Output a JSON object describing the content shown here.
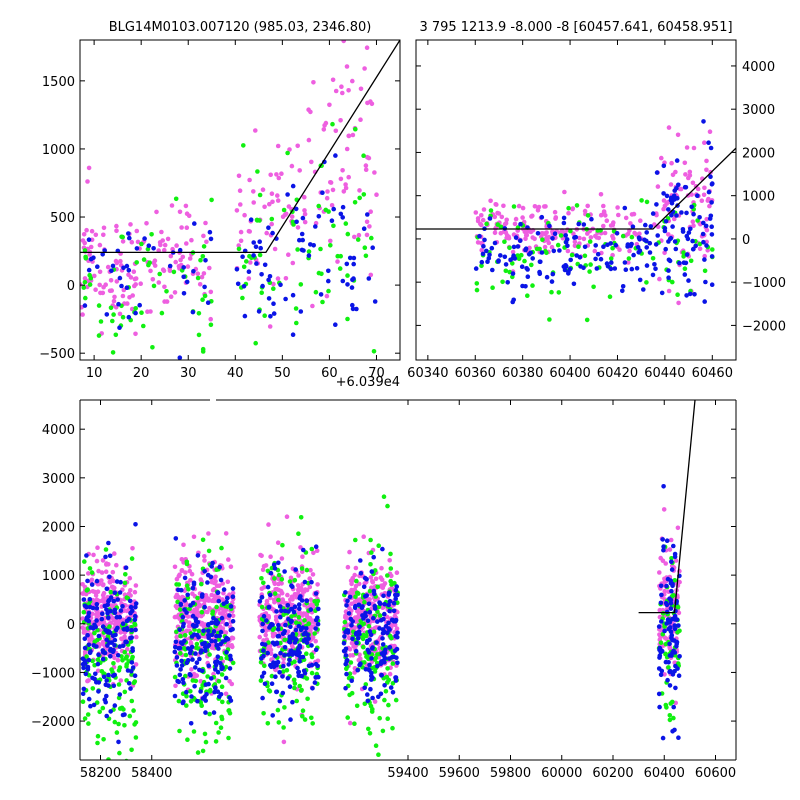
{
  "colors": {
    "magenta": "#ee5fe0",
    "blue": "#0a14e6",
    "green": "#10f010",
    "line": "#000000"
  },
  "chart_data": [
    {
      "id": "top-left",
      "type": "scatter",
      "title": "BLG14M0103.007120 (985.03, 2346.80)",
      "offset_label": "+6.039e4",
      "xlim": [
        7,
        75
      ],
      "ylim": [
        -550,
        1800
      ],
      "xticks": [
        10,
        20,
        30,
        40,
        50,
        60,
        70
      ],
      "yticks": [
        -500,
        0,
        500,
        1000,
        1500
      ],
      "yaxis_side": "left",
      "model_line": {
        "x": [
          7,
          46.5,
          75
        ],
        "y": [
          240,
          240,
          1800
        ]
      },
      "series": [
        {
          "color": "magenta",
          "seed": 11,
          "segments": [
            {
              "x0": 7,
              "x1": 35,
              "mean": 150,
              "sd": 200,
              "n": 150
            },
            {
              "x0": 40,
              "x1": 55,
              "mean": 500,
              "sd": 350,
              "n": 60
            },
            {
              "x0": 55,
              "x1": 70,
              "mean": 1000,
              "sd": 500,
              "n": 70
            }
          ]
        },
        {
          "color": "green",
          "seed": 23,
          "segments": [
            {
              "x0": 7,
              "x1": 35,
              "mean": 60,
              "sd": 250,
              "n": 60
            },
            {
              "x0": 40,
              "x1": 70,
              "mean": 300,
              "sd": 350,
              "n": 70
            }
          ]
        },
        {
          "color": "blue",
          "seed": 37,
          "segments": [
            {
              "x0": 7,
              "x1": 35,
              "mean": 0,
              "sd": 260,
              "n": 45
            },
            {
              "x0": 40,
              "x1": 70,
              "mean": 150,
              "sd": 330,
              "n": 80
            }
          ]
        }
      ]
    },
    {
      "id": "top-right",
      "type": "scatter",
      "title": "3 795 1213.9 -8.000 -8 [60457.641, 60458.951]",
      "xlim": [
        60335,
        60470
      ],
      "ylim": [
        -2800,
        4600
      ],
      "xticks": [
        60340,
        60360,
        60380,
        60400,
        60420,
        60440,
        60460
      ],
      "yticks": [
        -2000,
        -1000,
        0,
        1000,
        2000,
        3000,
        4000
      ],
      "yaxis_side": "right",
      "model_line": {
        "x": [
          60335,
          60435,
          60470
        ],
        "y": [
          230,
          230,
          2100
        ]
      },
      "series": [
        {
          "color": "magenta",
          "seed": 51,
          "segments": [
            {
              "x0": 60360,
              "x1": 60430,
              "mean": 200,
              "sd": 300,
              "n": 200
            },
            {
              "x0": 60435,
              "x1": 60460,
              "mean": 700,
              "sd": 900,
              "n": 90
            }
          ]
        },
        {
          "color": "green",
          "seed": 63,
          "segments": [
            {
              "x0": 60360,
              "x1": 60460,
              "mean": -300,
              "sd": 600,
              "n": 110
            }
          ]
        },
        {
          "color": "blue",
          "seed": 77,
          "segments": [
            {
              "x0": 60360,
              "x1": 60435,
              "mean": -300,
              "sd": 500,
              "n": 130
            },
            {
              "x0": 60435,
              "x1": 60460,
              "mean": 200,
              "sd": 900,
              "n": 90
            }
          ]
        }
      ]
    },
    {
      "id": "bottom",
      "type": "scatter",
      "title": "",
      "xlim": [
        58120,
        60680
      ],
      "ylim": [
        -2800,
        4600
      ],
      "xticks": [
        58200,
        58400,
        59400,
        59600,
        59800,
        60000,
        60200,
        60400,
        60600
      ],
      "yticks": [
        -2000,
        -1000,
        0,
        1000,
        2000,
        3000,
        4000
      ],
      "yaxis_side": "left",
      "model_line": {
        "x": [
          60300,
          60440,
          60520
        ],
        "y": [
          230,
          230,
          4600
        ]
      },
      "series": [
        {
          "color": "magenta",
          "seed": 101,
          "segments": [
            {
              "x0": 58130,
              "x1": 58340,
              "mean": 150,
              "sd": 550,
              "n": 300
            },
            {
              "x0": 58490,
              "x1": 58720,
              "mean": 150,
              "sd": 600,
              "n": 320
            },
            {
              "x0": 58820,
              "x1": 59050,
              "mean": 150,
              "sd": 600,
              "n": 300
            },
            {
              "x0": 59150,
              "x1": 59360,
              "mean": 150,
              "sd": 600,
              "n": 300
            },
            {
              "x0": 60380,
              "x1": 60460,
              "mean": 250,
              "sd": 650,
              "n": 120
            }
          ]
        },
        {
          "color": "green",
          "seed": 131,
          "segments": [
            {
              "x0": 58130,
              "x1": 58340,
              "mean": -600,
              "sd": 900,
              "n": 140
            },
            {
              "x0": 58490,
              "x1": 58720,
              "mean": -700,
              "sd": 950,
              "n": 150
            },
            {
              "x0": 58820,
              "x1": 59050,
              "mean": -400,
              "sd": 900,
              "n": 140
            },
            {
              "x0": 59150,
              "x1": 59360,
              "mean": -500,
              "sd": 950,
              "n": 140
            },
            {
              "x0": 60380,
              "x1": 60460,
              "mean": -300,
              "sd": 900,
              "n": 50
            }
          ]
        },
        {
          "color": "blue",
          "seed": 157,
          "segments": [
            {
              "x0": 58130,
              "x1": 58340,
              "mean": -300,
              "sd": 700,
              "n": 160
            },
            {
              "x0": 58490,
              "x1": 58720,
              "mean": -400,
              "sd": 700,
              "n": 170
            },
            {
              "x0": 58820,
              "x1": 59050,
              "mean": -300,
              "sd": 650,
              "n": 160
            },
            {
              "x0": 59150,
              "x1": 59360,
              "mean": -300,
              "sd": 650,
              "n": 160
            },
            {
              "x0": 60380,
              "x1": 60460,
              "mean": -200,
              "sd": 900,
              "n": 90
            }
          ]
        }
      ]
    }
  ]
}
